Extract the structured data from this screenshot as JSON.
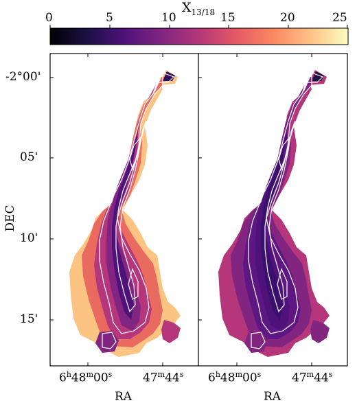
{
  "colorbar": {
    "label_main": "X",
    "label_sub": "13/18",
    "min": 0,
    "max": 25,
    "ticks": [
      "0",
      "5",
      "10",
      "15",
      "20",
      "25"
    ],
    "tick_values": [
      0,
      5,
      10,
      15,
      20,
      25
    ],
    "colormap": "magma",
    "stops": [
      "#000004",
      "#1c1044",
      "#4f127b",
      "#812581",
      "#b5367a",
      "#e55964",
      "#fb8861",
      "#fec287",
      "#fcfdbf"
    ]
  },
  "y_axis": {
    "label": "DEC",
    "ticks": [
      "-2°00'",
      "05'",
      "10'",
      "15'"
    ]
  },
  "panels": [
    {
      "name": "left",
      "x_axis": {
        "label": "RA",
        "ticks": [
          {
            "main": "6",
            "sup1": "h",
            "mid": "48",
            "sup2": "m",
            "end": "00",
            "sup3": "s"
          },
          {
            "main": "47",
            "sup1": "m",
            "mid": "44",
            "sup2": "s",
            "end": "",
            "sup3": ""
          }
        ]
      }
    },
    {
      "name": "right",
      "x_axis": {
        "label": "RA",
        "ticks": [
          {
            "main": "6",
            "sup1": "h",
            "mid": "48",
            "sup2": "m",
            "end": "00",
            "sup3": "s"
          },
          {
            "main": "47",
            "sup1": "m",
            "mid": "44",
            "sup2": "s",
            "end": "",
            "sup3": ""
          }
        ]
      }
    }
  ]
}
